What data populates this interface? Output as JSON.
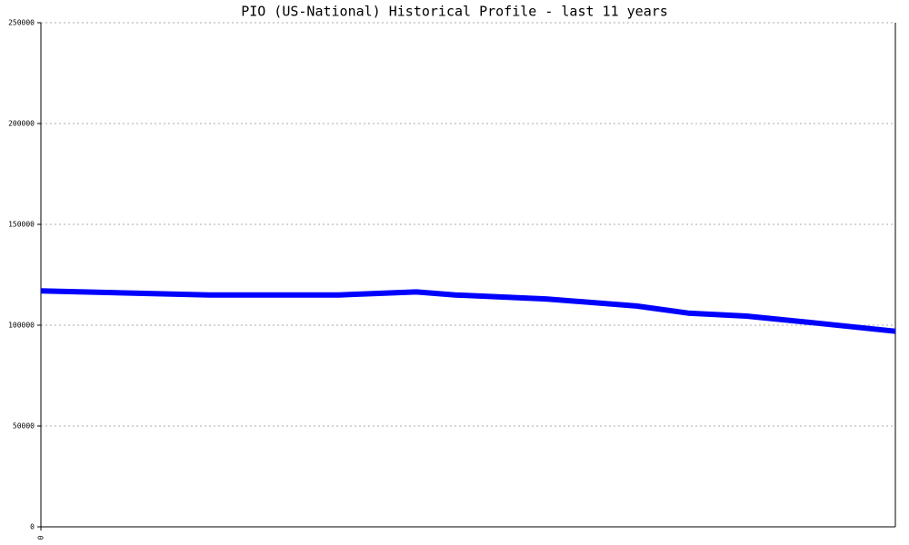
{
  "chart_data": {
    "type": "line",
    "title": "PIO (US-National) Historical Profile - last 11 years",
    "x": [
      0,
      26,
      40,
      46,
      58,
      64,
      78,
      92,
      100,
      109,
      120,
      132
    ],
    "xlim": [
      0,
      132
    ],
    "xticks": [
      0
    ],
    "series": [
      {
        "name": "PIO",
        "color": "#0000ff",
        "values": [
          117000,
          115000,
          115000,
          115000,
          116500,
          115000,
          113000,
          109500,
          106000,
          104500,
          101000,
          97000
        ]
      }
    ],
    "ylim": [
      0,
      250000
    ],
    "yticks": [
      0,
      50000,
      100000,
      150000,
      200000,
      250000
    ],
    "grid": true
  }
}
